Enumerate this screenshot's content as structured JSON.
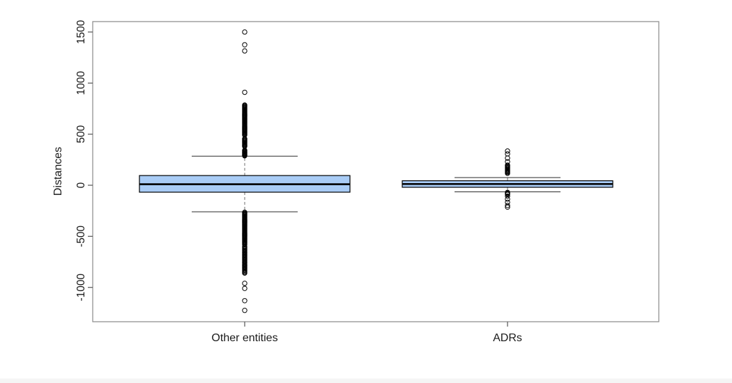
{
  "page": {
    "background": "#ffffff",
    "footer_strip_color": "#f5f5f5"
  },
  "chart_data": {
    "type": "boxplot",
    "title": "",
    "xlabel": "",
    "ylabel": "Distances",
    "categories": [
      "Other entities",
      "ADRs"
    ],
    "y_ticks": [
      -1000,
      -500,
      0,
      500,
      1000,
      1500
    ],
    "ylim": [
      -1336,
      1602
    ],
    "grid": false,
    "legend": "none",
    "colors": {
      "box_fill": "#a9ccf6",
      "box_border": "#000000",
      "median": "#000000",
      "whisker_dash": "#6e6e6e",
      "staple": "#2a2a2a",
      "outlier_stroke": "#000000",
      "axis_frame": "#888888",
      "tick": "#555555",
      "text": "#1a1a1a"
    },
    "groups": [
      {
        "label": "Other entities",
        "stats": {
          "whisker_low": -260,
          "q1": -68,
          "median": 10,
          "q3": 95,
          "whisker_high": 285
        },
        "outliers_high": [
          1500,
          1375,
          1315,
          910,
          785,
          778,
          771,
          764,
          757,
          750,
          743,
          736,
          729,
          722,
          715,
          708,
          701,
          694,
          687,
          680,
          673,
          666,
          659,
          652,
          645,
          638,
          631,
          624,
          617,
          610,
          603,
          596,
          589,
          582,
          575,
          568,
          561,
          554,
          547,
          540,
          533,
          526,
          519,
          512,
          505,
          498,
          492,
          455,
          448,
          441,
          434,
          427,
          420,
          413,
          406,
          399,
          392,
          386,
          380,
          342,
          336,
          330,
          324,
          318,
          312,
          306,
          300,
          294,
          288
        ],
        "outliers_low": [
          -265,
          -272,
          -279,
          -286,
          -293,
          -300,
          -307,
          -314,
          -321,
          -328,
          -335,
          -342,
          -349,
          -356,
          -363,
          -370,
          -377,
          -384,
          -391,
          -398,
          -405,
          -412,
          -419,
          -426,
          -433,
          -440,
          -447,
          -454,
          -461,
          -468,
          -475,
          -482,
          -489,
          -496,
          -503,
          -510,
          -517,
          -524,
          -531,
          -538,
          -545,
          -552,
          -559,
          -566,
          -573,
          -580,
          -600,
          -609,
          -618,
          -627,
          -636,
          -645,
          -654,
          -663,
          -672,
          -681,
          -690,
          -699,
          -708,
          -717,
          -726,
          -735,
          -744,
          -753,
          -762,
          -771,
          -780,
          -789,
          -798,
          -807,
          -816,
          -825,
          -834,
          -843,
          -852,
          -860,
          -960,
          -1010,
          -1130,
          -1225
        ]
      },
      {
        "label": "ADRs",
        "stats": {
          "whisker_low": -65,
          "q1": -20,
          "median": 12,
          "q3": 44,
          "whisker_high": 75
        },
        "outliers_high": [
          335,
          307,
          266,
          230,
          197,
          189,
          181,
          173,
          165,
          157,
          149,
          141,
          133,
          125,
          117
        ],
        "outliers_low": [
          -70,
          -76,
          -83,
          -90,
          -106,
          -136,
          -167,
          -198,
          -214
        ]
      }
    ]
  }
}
